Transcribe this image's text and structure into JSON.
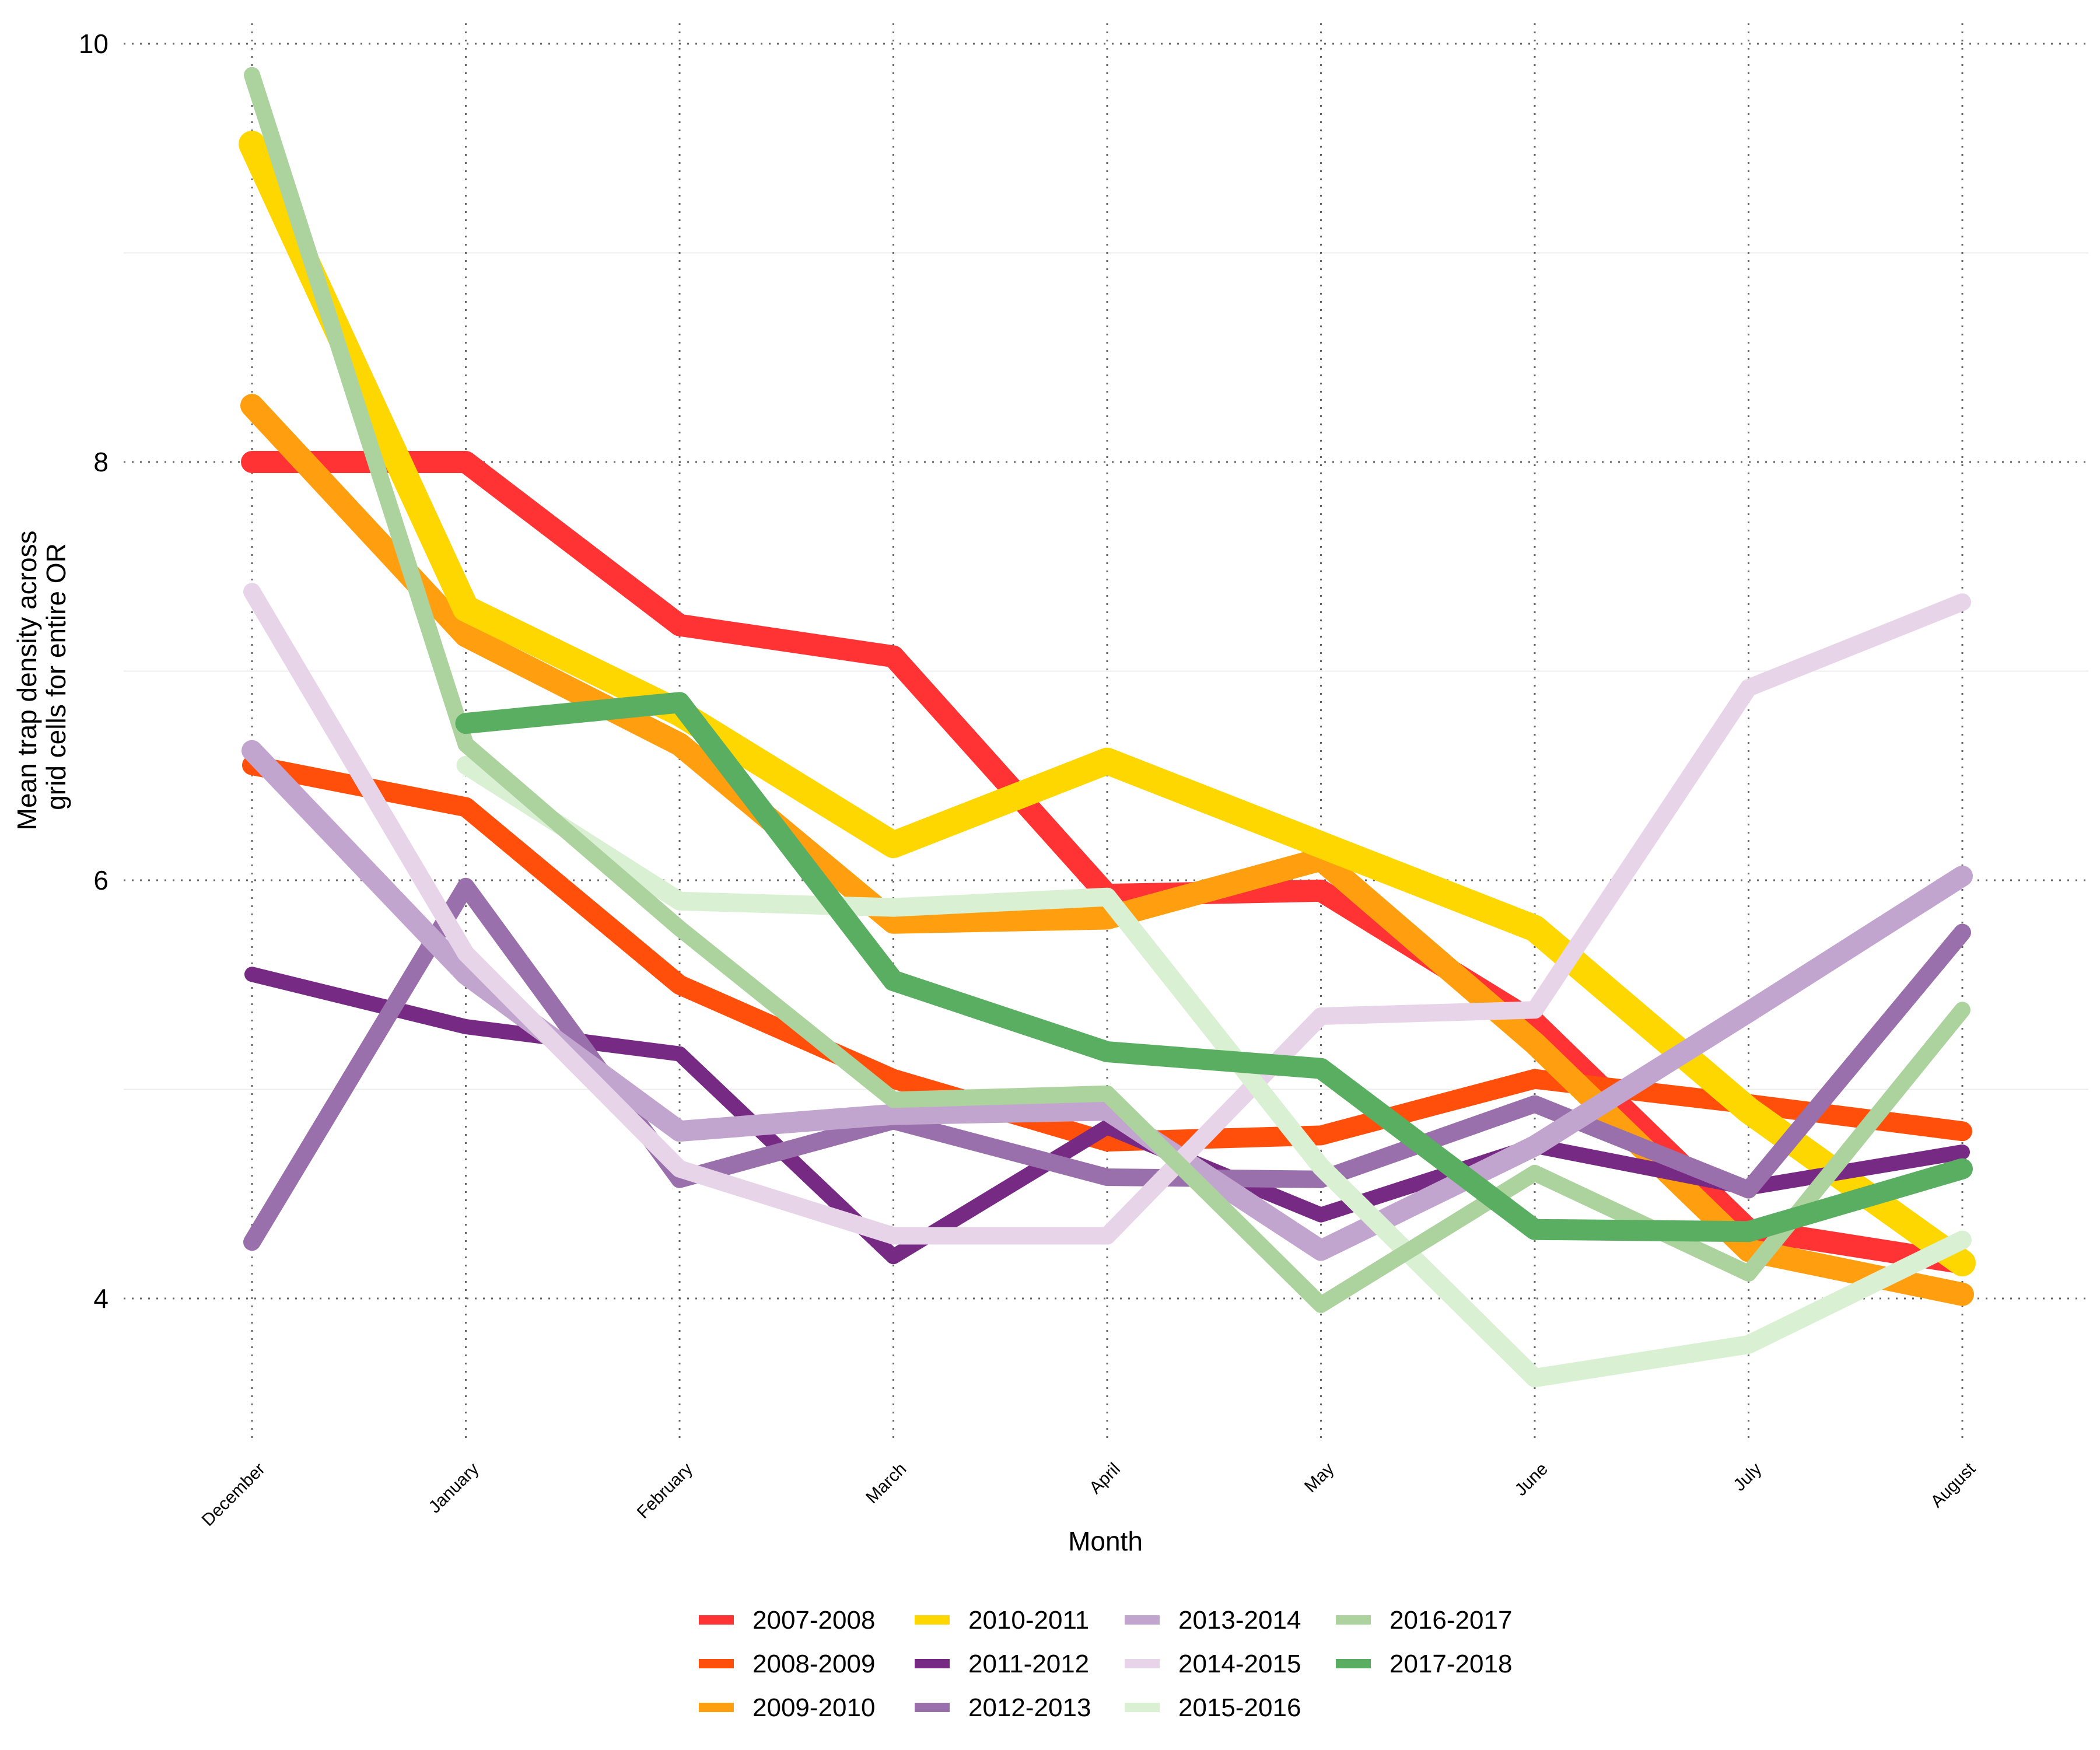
{
  "chart_data": {
    "type": "line",
    "title": "",
    "xlabel": "Month",
    "ylabel": [
      "Mean trap density across",
      "grid cells for entire OR"
    ],
    "categories": [
      "December",
      "January",
      "February",
      "March",
      "April",
      "May",
      "June",
      "July",
      "August"
    ],
    "ylim": [
      3.3,
      10.05
    ],
    "yticks": [
      4,
      6,
      8,
      10
    ],
    "ytick_labels": [
      "4",
      "6",
      "8",
      "10"
    ],
    "y_minor_gridlines": [
      5,
      7,
      9
    ],
    "grid": true,
    "legend_position": "bottom",
    "series": [
      {
        "name": "2007-2008",
        "color": "#FF3333",
        "values": [
          8.0,
          8.0,
          7.22,
          7.07,
          5.93,
          5.95,
          5.32,
          4.33,
          4.17
        ]
      },
      {
        "name": "2008-2009",
        "color": "#FF4F0B",
        "values": [
          6.55,
          6.35,
          5.5,
          5.05,
          4.75,
          4.78,
          5.05,
          4.93,
          4.8
        ]
      },
      {
        "name": "2009-2010",
        "color": "#FF9F0F",
        "values": [
          8.27,
          7.17,
          6.65,
          5.8,
          5.82,
          6.1,
          5.22,
          4.23,
          4.02
        ]
      },
      {
        "name": "2010-2011",
        "color": "#FFD700",
        "values": [
          9.52,
          7.3,
          6.8,
          6.17,
          6.57,
          6.17,
          5.77,
          4.9,
          4.17
        ]
      },
      {
        "name": "2011-2012",
        "color": "#762A83",
        "values": [
          5.55,
          5.3,
          5.17,
          4.2,
          4.82,
          4.4,
          4.73,
          4.53,
          4.7
        ]
      },
      {
        "name": "2012-2013",
        "color": "#9970AB",
        "values": [
          4.27,
          5.97,
          4.57,
          4.85,
          4.58,
          4.57,
          4.93,
          4.52,
          5.75
        ]
      },
      {
        "name": "2013-2014",
        "color": "#C2A5CF",
        "values": [
          6.62,
          5.55,
          4.8,
          4.88,
          4.9,
          4.23,
          4.73,
          5.37,
          6.02
        ]
      },
      {
        "name": "2014-2015",
        "color": "#E7D4E8",
        "values": [
          7.38,
          5.65,
          4.62,
          4.3,
          4.3,
          5.35,
          5.38,
          6.92,
          7.33
        ]
      },
      {
        "name": "2015-2016",
        "color": "#D9F0D3",
        "values": [
          null,
          6.55,
          5.9,
          5.87,
          5.92,
          4.63,
          3.62,
          3.78,
          4.28
        ]
      },
      {
        "name": "2016-2017",
        "color": "#ACD39E",
        "values": [
          9.85,
          6.65,
          5.77,
          4.95,
          4.98,
          3.97,
          4.6,
          4.12,
          5.38
        ]
      },
      {
        "name": "2017-2018",
        "color": "#5AAE61",
        "values": [
          null,
          6.75,
          6.85,
          5.52,
          5.18,
          5.1,
          4.33,
          4.32,
          4.62
        ]
      }
    ]
  }
}
